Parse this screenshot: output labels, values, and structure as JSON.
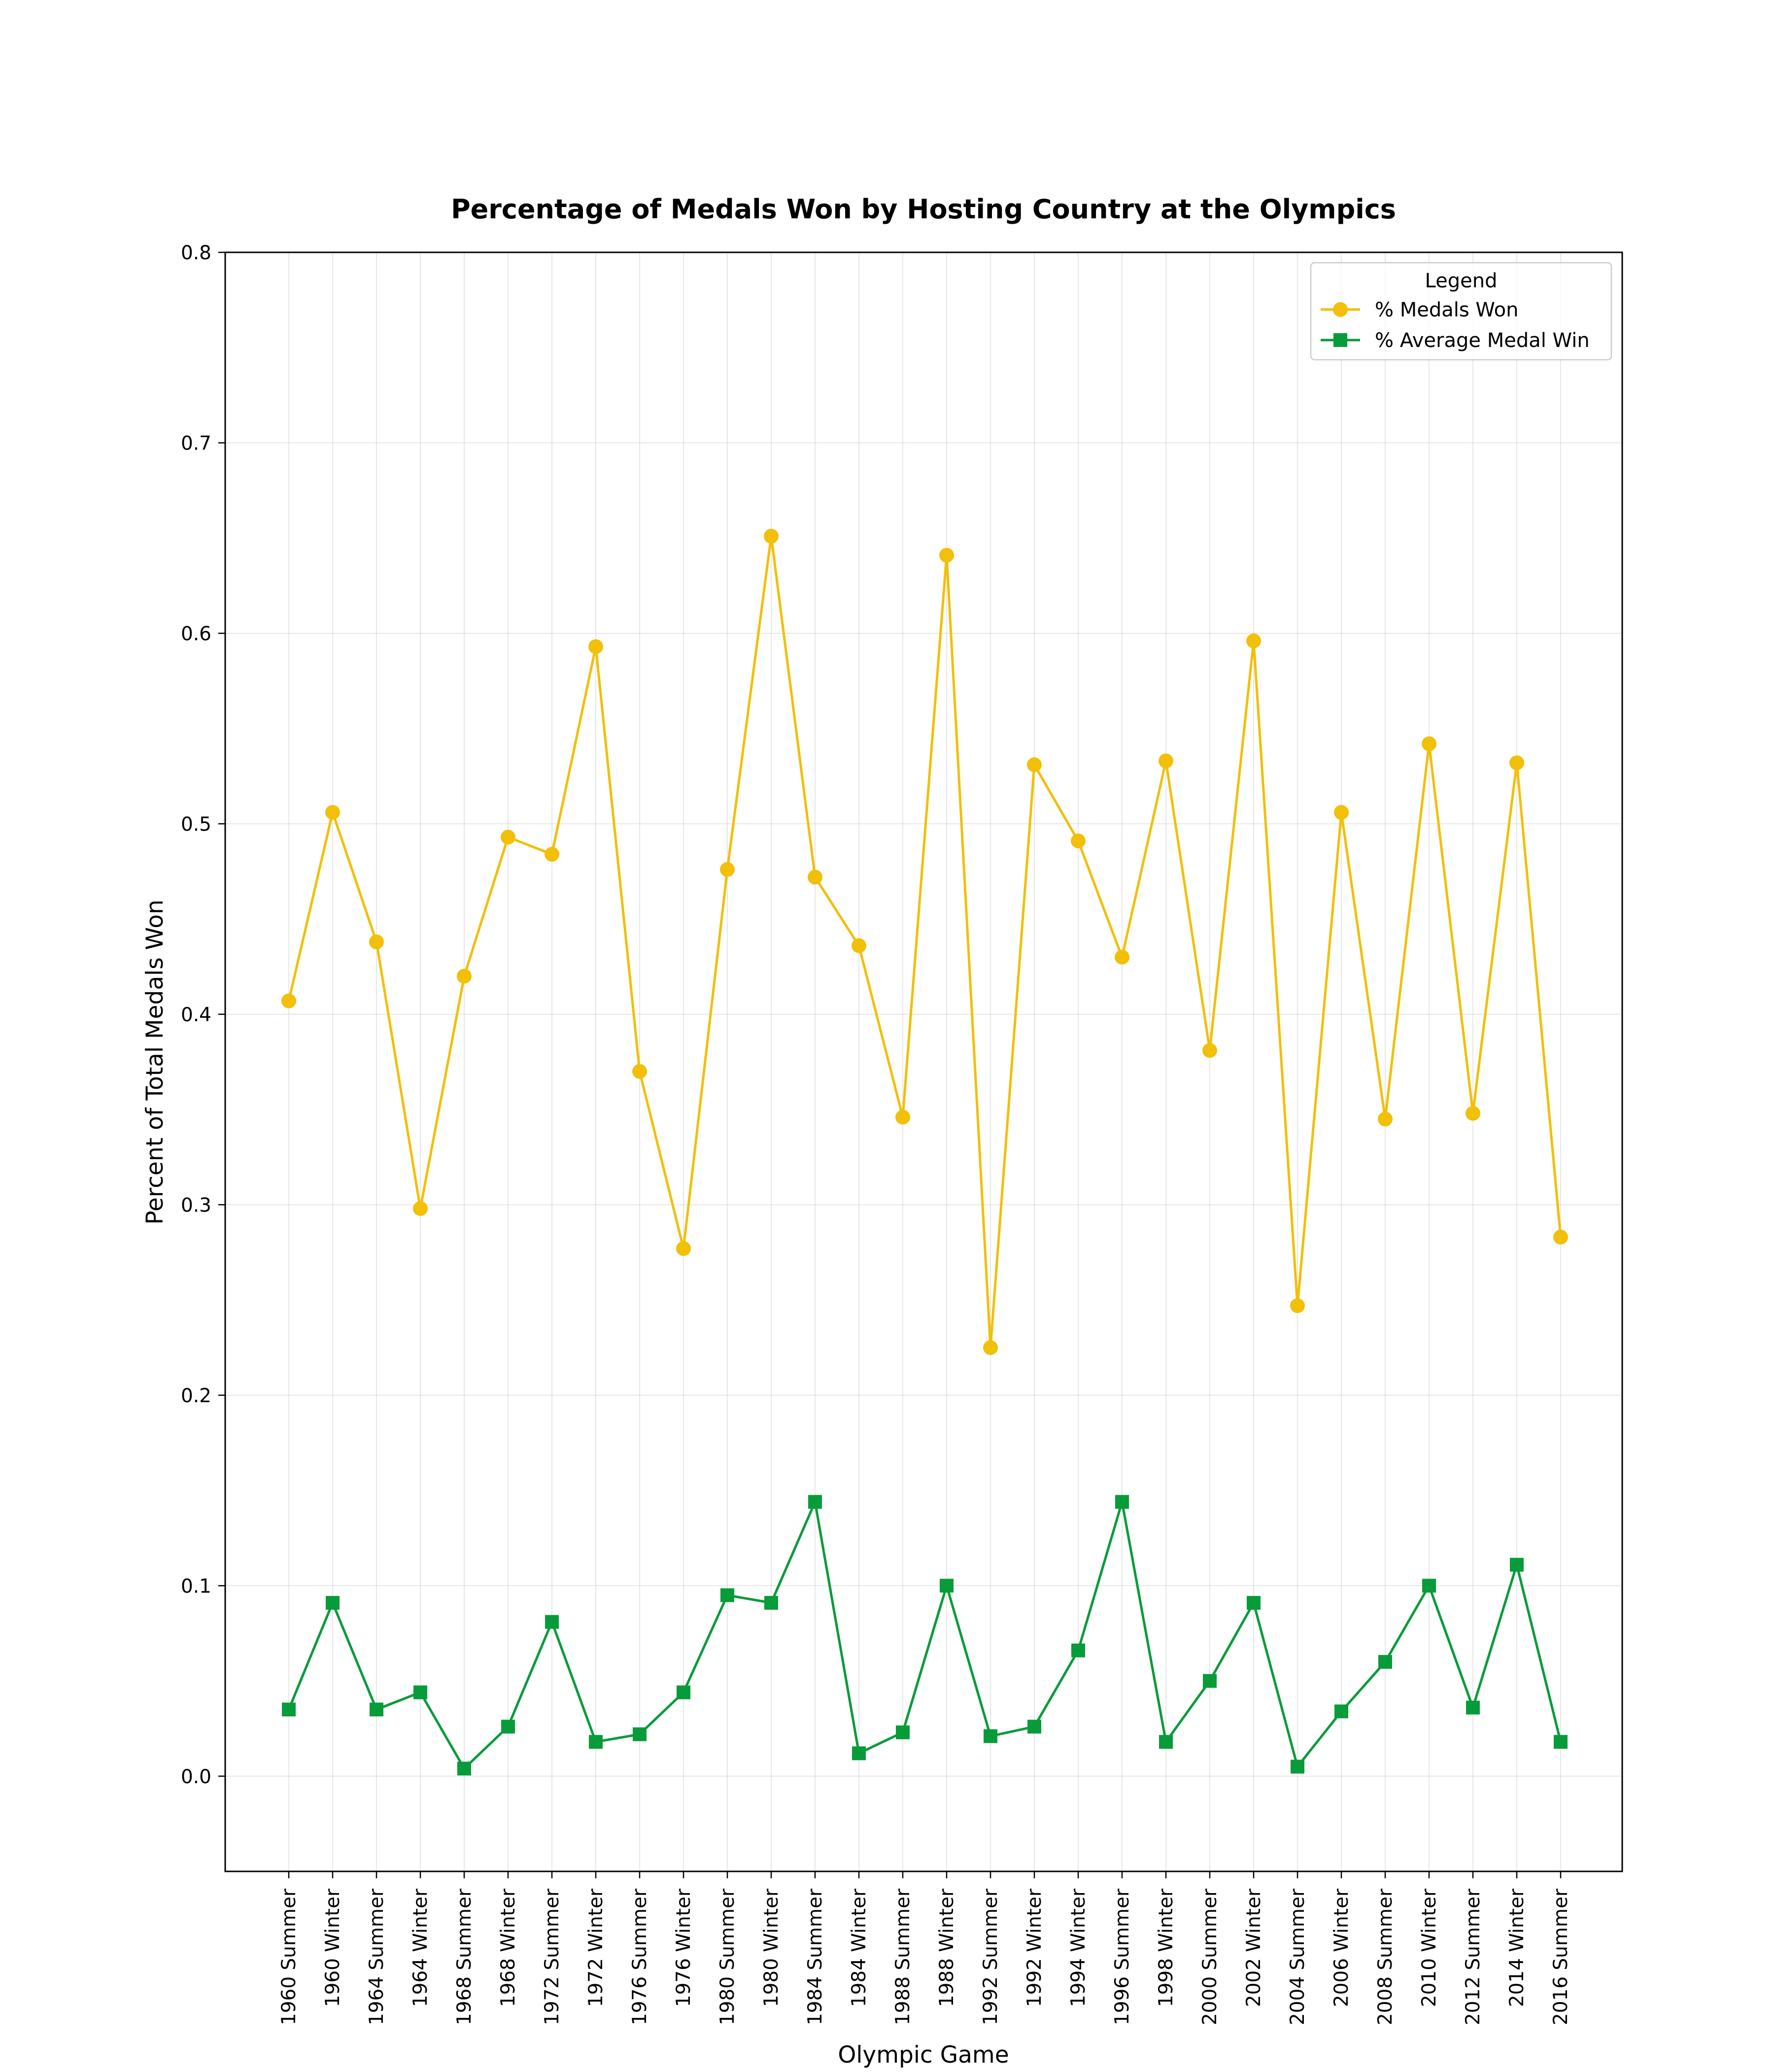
{
  "chart_data": {
    "type": "line",
    "title": "Percentage of Medals Won by Hosting Country at the Olympics",
    "xlabel": "Olympic Game",
    "ylabel": "Percent of Total Medals Won",
    "ylim": [
      -0.05,
      0.8
    ],
    "yticks": [
      "0.0",
      "0.1",
      "0.2",
      "0.3",
      "0.4",
      "0.5",
      "0.6",
      "0.7",
      "0.8"
    ],
    "grid": true,
    "legend": {
      "title": "Legend",
      "placement": "top-right"
    },
    "categories": [
      "1960 Summer",
      "1960 Winter",
      "1964 Summer",
      "1964 Winter",
      "1968 Summer",
      "1968 Winter",
      "1972 Summer",
      "1972 Winter",
      "1976 Summer",
      "1976 Winter",
      "1980 Summer",
      "1980 Winter",
      "1984 Summer",
      "1984 Winter",
      "1988 Summer",
      "1988 Winter",
      "1992 Summer",
      "1992 Winter",
      "1994 Winter",
      "1996 Summer",
      "1998 Winter",
      "2000 Summer",
      "2002 Winter",
      "2004 Summer",
      "2006 Winter",
      "2008 Summer",
      "2010 Winter",
      "2012 Summer",
      "2014 Winter",
      "2016 Summer"
    ],
    "series": [
      {
        "name": "% Medals Won",
        "color": "#f2bf09",
        "marker": "circle",
        "values": [
          0.407,
          0.506,
          0.438,
          0.298,
          0.42,
          0.493,
          0.484,
          0.593,
          0.37,
          0.277,
          0.476,
          0.651,
          0.472,
          0.436,
          0.346,
          0.641,
          0.225,
          0.531,
          0.491,
          0.43,
          0.533,
          0.381,
          0.596,
          0.247,
          0.506,
          0.345,
          0.542,
          0.348,
          0.532,
          0.283
        ]
      },
      {
        "name": "% Average Medal Win",
        "color": "#089b3a",
        "marker": "square",
        "values": [
          0.035,
          0.091,
          0.035,
          0.044,
          0.004,
          0.026,
          0.081,
          0.018,
          0.022,
          0.044,
          0.095,
          0.091,
          0.144,
          0.012,
          0.023,
          0.1,
          0.021,
          0.026,
          0.066,
          0.144,
          0.018,
          0.05,
          0.091,
          0.005,
          0.034,
          0.06,
          0.1,
          0.036,
          0.111,
          0.018
        ]
      }
    ]
  }
}
